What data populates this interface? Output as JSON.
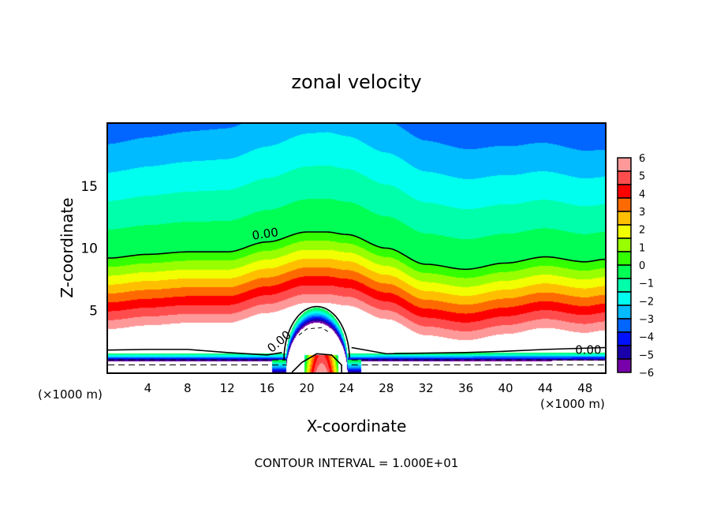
{
  "chart_data": {
    "type": "heatmap",
    "subtype": "filled-contour",
    "title": "zonal velocity",
    "xlabel": "X-coordinate",
    "ylabel": "Z-coordinate",
    "x_unit_label": "(×1000 m)",
    "y_unit_label": "(×1000 m)",
    "footer": "CONTOUR INTERVAL = 1.000E+01",
    "xlim": [
      0,
      50
    ],
    "ylim": [
      0,
      20
    ],
    "x_ticks": [
      4,
      8,
      12,
      16,
      20,
      24,
      28,
      32,
      36,
      40,
      44,
      48
    ],
    "y_ticks": [
      5,
      10,
      15
    ],
    "x_minor_step": 2,
    "y_minor_step": 1,
    "contour_labels": [
      {
        "text": "0.00",
        "x": 14.5,
        "z": 11.0
      },
      {
        "text": "0.00",
        "x": 16.2,
        "z": 1.8
      },
      {
        "text": "0.00",
        "x": 47.0,
        "z": 1.8
      }
    ],
    "zero_contour_upper": {
      "x": [
        0,
        4,
        8,
        12,
        16,
        20,
        22,
        24,
        28,
        32,
        36,
        40,
        44,
        48,
        50
      ],
      "z": [
        9.2,
        9.5,
        9.7,
        9.7,
        10.5,
        11.3,
        11.3,
        11.1,
        10.0,
        8.7,
        8.3,
        8.8,
        9.3,
        8.9,
        9.1
      ]
    },
    "colorbar": {
      "ticks": [
        "6",
        "5",
        "4",
        "3",
        "2",
        "1",
        "0",
        "−1",
        "−2",
        "−3",
        "−4",
        "−5",
        "−6"
      ],
      "range": [
        -6,
        6
      ],
      "colors": [
        "#ff9999",
        "#ff4d4d",
        "#ff0000",
        "#ff6a00",
        "#ffbf00",
        "#f2ff00",
        "#99ff00",
        "#33ff00",
        "#00ff55",
        "#00ffaa",
        "#00ffee",
        "#00bbff",
        "#0066ff",
        "#0011ff",
        "#1a00aa",
        "#7700aa"
      ]
    },
    "features": {
      "mountain_jet_center_x": 21,
      "white_saturation_band_z": [
        2.5,
        4.5
      ],
      "lowest_level_dashed_contours_z": [
        0.4,
        0.8
      ]
    }
  }
}
